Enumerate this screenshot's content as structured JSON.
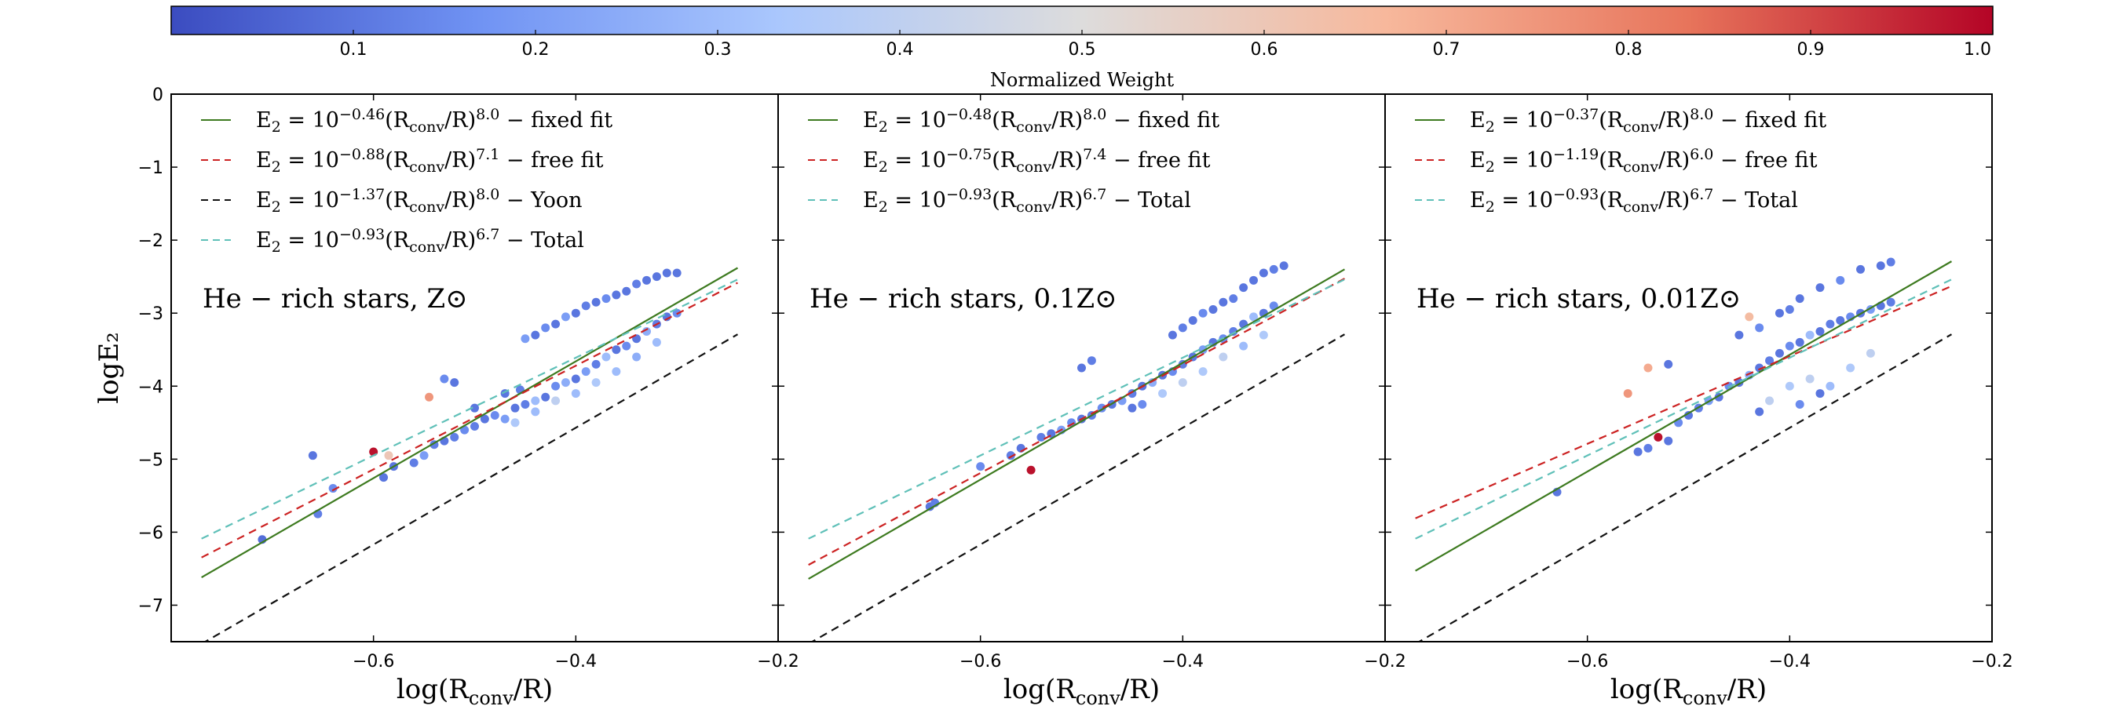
{
  "chart_data": {
    "type": "scatter",
    "colorbar": {
      "label": "Normalized Weight",
      "range": [
        0.0,
        1.0
      ],
      "ticks": [
        "0.1",
        "0.2",
        "0.3",
        "0.4",
        "0.5",
        "0.6",
        "0.7",
        "0.8",
        "0.9",
        "1.0"
      ],
      "colors": [
        "#3b4cc0",
        "#6f92f3",
        "#aac7fd",
        "#dddcdc",
        "#f7b89c",
        "#e7745b",
        "#b40426"
      ]
    },
    "shared_ylabel": "logE₂",
    "shared_ylim": [
      -7.5,
      0
    ],
    "shared_yticks": [
      "0",
      "−1",
      "−2",
      "−3",
      "−4",
      "−5",
      "−6",
      "−7"
    ],
    "panels": [
      {
        "title": "He − rich stars, Z⊙",
        "xlabel": "log(Rconv/R)",
        "xlim": [
          -0.8,
          -0.2
        ],
        "xticks": [
          "−0.6",
          "−0.4",
          "−0.2"
        ],
        "legend": [
          "E₂ = 10^−0.46 (Rconv/R)^8.0 − fixed fit",
          "E₂ = 10^−0.88 (Rconv/R)^7.1 − free fit",
          "E₂ = 10^−1.37 (Rconv/R)^8.0 − Yoon",
          "E₂ = 10^−0.93 (Rconv/R)^6.7 − Total"
        ],
        "lines": [
          {
            "name": "fixed fit",
            "color": "#3d7a1f",
            "dash": "none",
            "a": -0.46,
            "b": 8.0
          },
          {
            "name": "free fit",
            "color": "#cc2222",
            "dash": "10,7",
            "a": -0.88,
            "b": 7.1
          },
          {
            "name": "Yoon",
            "color": "#111111",
            "dash": "10,7",
            "a": -1.37,
            "b": 8.0
          },
          {
            "name": "Total",
            "color": "#5fc0b8",
            "dash": "10,7",
            "a": -0.93,
            "b": 6.7
          }
        ],
        "scatter": [
          {
            "x": -0.71,
            "y": -6.1,
            "w": 0.08
          },
          {
            "x": -0.66,
            "y": -4.95,
            "w": 0.1
          },
          {
            "x": -0.655,
            "y": -5.75,
            "w": 0.12
          },
          {
            "x": -0.64,
            "y": -5.4,
            "w": 0.15
          },
          {
            "x": -0.6,
            "y": -4.9,
            "w": 0.98
          },
          {
            "x": -0.585,
            "y": -4.95,
            "w": 0.6
          },
          {
            "x": -0.59,
            "y": -5.25,
            "w": 0.1
          },
          {
            "x": -0.58,
            "y": -5.1,
            "w": 0.1
          },
          {
            "x": -0.56,
            "y": -5.05,
            "w": 0.12
          },
          {
            "x": -0.545,
            "y": -4.15,
            "w": 0.75
          },
          {
            "x": -0.53,
            "y": -3.9,
            "w": 0.15
          },
          {
            "x": -0.52,
            "y": -3.95,
            "w": 0.1
          },
          {
            "x": -0.55,
            "y": -4.95,
            "w": 0.2
          },
          {
            "x": -0.54,
            "y": -4.8,
            "w": 0.12
          },
          {
            "x": -0.53,
            "y": -4.75,
            "w": 0.1
          },
          {
            "x": -0.52,
            "y": -4.7,
            "w": 0.12
          },
          {
            "x": -0.51,
            "y": -4.6,
            "w": 0.15
          },
          {
            "x": -0.5,
            "y": -4.55,
            "w": 0.12
          },
          {
            "x": -0.49,
            "y": -4.45,
            "w": 0.1
          },
          {
            "x": -0.48,
            "y": -4.4,
            "w": 0.15
          },
          {
            "x": -0.47,
            "y": -4.45,
            "w": 0.2
          },
          {
            "x": -0.46,
            "y": -4.3,
            "w": 0.1
          },
          {
            "x": -0.45,
            "y": -4.25,
            "w": 0.12
          },
          {
            "x": -0.44,
            "y": -4.2,
            "w": 0.3
          },
          {
            "x": -0.43,
            "y": -4.15,
            "w": 0.1
          },
          {
            "x": -0.42,
            "y": -4.0,
            "w": 0.15
          },
          {
            "x": -0.41,
            "y": -3.95,
            "w": 0.25
          },
          {
            "x": -0.4,
            "y": -3.9,
            "w": 0.1
          },
          {
            "x": -0.39,
            "y": -3.8,
            "w": 0.2
          },
          {
            "x": -0.38,
            "y": -3.7,
            "w": 0.12
          },
          {
            "x": -0.37,
            "y": -3.6,
            "w": 0.3
          },
          {
            "x": -0.36,
            "y": -3.5,
            "w": 0.1
          },
          {
            "x": -0.35,
            "y": -3.45,
            "w": 0.15
          },
          {
            "x": -0.34,
            "y": -3.35,
            "w": 0.1
          },
          {
            "x": -0.33,
            "y": -3.25,
            "w": 0.25
          },
          {
            "x": -0.32,
            "y": -3.15,
            "w": 0.12
          },
          {
            "x": -0.31,
            "y": -3.05,
            "w": 0.1
          },
          {
            "x": -0.3,
            "y": -3.0,
            "w": 0.15
          },
          {
            "x": -0.46,
            "y": -4.5,
            "w": 0.35
          },
          {
            "x": -0.44,
            "y": -4.35,
            "w": 0.3
          },
          {
            "x": -0.42,
            "y": -4.2,
            "w": 0.4
          },
          {
            "x": -0.4,
            "y": -4.1,
            "w": 0.3
          },
          {
            "x": -0.38,
            "y": -3.95,
            "w": 0.35
          },
          {
            "x": -0.36,
            "y": -3.8,
            "w": 0.3
          },
          {
            "x": -0.34,
            "y": -3.6,
            "w": 0.25
          },
          {
            "x": -0.32,
            "y": -3.4,
            "w": 0.3
          },
          {
            "x": -0.45,
            "y": -3.35,
            "w": 0.2
          },
          {
            "x": -0.44,
            "y": -3.3,
            "w": 0.1
          },
          {
            "x": -0.43,
            "y": -3.2,
            "w": 0.15
          },
          {
            "x": -0.42,
            "y": -3.15,
            "w": 0.1
          },
          {
            "x": -0.41,
            "y": -3.05,
            "w": 0.2
          },
          {
            "x": -0.4,
            "y": -3.0,
            "w": 0.1
          },
          {
            "x": -0.39,
            "y": -2.9,
            "w": 0.12
          },
          {
            "x": -0.38,
            "y": -2.85,
            "w": 0.1
          },
          {
            "x": -0.37,
            "y": -2.8,
            "w": 0.15
          },
          {
            "x": -0.36,
            "y": -2.75,
            "w": 0.1
          },
          {
            "x": -0.35,
            "y": -2.7,
            "w": 0.1
          },
          {
            "x": -0.34,
            "y": -2.6,
            "w": 0.12
          },
          {
            "x": -0.33,
            "y": -2.55,
            "w": 0.1
          },
          {
            "x": -0.32,
            "y": -2.5,
            "w": 0.1
          },
          {
            "x": -0.31,
            "y": -2.45,
            "w": 0.1
          },
          {
            "x": -0.3,
            "y": -2.45,
            "w": 0.1
          },
          {
            "x": -0.47,
            "y": -4.1,
            "w": 0.1
          },
          {
            "x": -0.455,
            "y": -4.05,
            "w": 0.12
          },
          {
            "x": -0.5,
            "y": -4.3,
            "w": 0.1
          }
        ]
      },
      {
        "title": "He − rich stars, 0.1Z⊙",
        "xlabel": "log(Rconv/R)",
        "xlim": [
          -0.8,
          -0.2
        ],
        "xticks": [
          "−0.6",
          "−0.4",
          "−0.2"
        ],
        "legend": [
          "E₂ = 10^−0.48 (Rconv/R)^8.0 − fixed fit",
          "E₂ = 10^−0.75 (Rconv/R)^7.4 − free fit",
          "E₂ = 10^−0.93 (Rconv/R)^6.7 − Total"
        ],
        "lines": [
          {
            "name": "fixed fit",
            "color": "#3d7a1f",
            "dash": "none",
            "a": -0.48,
            "b": 8.0
          },
          {
            "name": "free fit",
            "color": "#cc2222",
            "dash": "10,7",
            "a": -0.75,
            "b": 7.4
          },
          {
            "name": "Total",
            "color": "#5fc0b8",
            "dash": "10,7",
            "a": -0.93,
            "b": 6.7
          },
          {
            "name": "Yoon",
            "color": "#111111",
            "dash": "10,7",
            "a": -1.37,
            "b": 8.0
          }
        ],
        "scatter": [
          {
            "x": -0.65,
            "y": -5.65,
            "w": 0.1
          },
          {
            "x": -0.645,
            "y": -5.6,
            "w": 0.12
          },
          {
            "x": -0.6,
            "y": -5.1,
            "w": 0.15
          },
          {
            "x": -0.57,
            "y": -4.95,
            "w": 0.12
          },
          {
            "x": -0.55,
            "y": -5.15,
            "w": 0.98
          },
          {
            "x": -0.56,
            "y": -4.85,
            "w": 0.1
          },
          {
            "x": -0.54,
            "y": -4.7,
            "w": 0.12
          },
          {
            "x": -0.53,
            "y": -4.65,
            "w": 0.1
          },
          {
            "x": -0.52,
            "y": -4.6,
            "w": 0.2
          },
          {
            "x": -0.51,
            "y": -4.5,
            "w": 0.15
          },
          {
            "x": -0.5,
            "y": -4.45,
            "w": 0.1
          },
          {
            "x": -0.49,
            "y": -4.4,
            "w": 0.12
          },
          {
            "x": -0.48,
            "y": -4.3,
            "w": 0.15
          },
          {
            "x": -0.47,
            "y": -4.25,
            "w": 0.1
          },
          {
            "x": -0.46,
            "y": -4.2,
            "w": 0.2
          },
          {
            "x": -0.45,
            "y": -4.1,
            "w": 0.12
          },
          {
            "x": -0.44,
            "y": -4.0,
            "w": 0.1
          },
          {
            "x": -0.43,
            "y": -3.95,
            "w": 0.25
          },
          {
            "x": -0.42,
            "y": -3.85,
            "w": 0.1
          },
          {
            "x": -0.41,
            "y": -3.8,
            "w": 0.15
          },
          {
            "x": -0.4,
            "y": -3.7,
            "w": 0.12
          },
          {
            "x": -0.39,
            "y": -3.6,
            "w": 0.1
          },
          {
            "x": -0.38,
            "y": -3.5,
            "w": 0.2
          },
          {
            "x": -0.37,
            "y": -3.4,
            "w": 0.1
          },
          {
            "x": -0.36,
            "y": -3.35,
            "w": 0.15
          },
          {
            "x": -0.35,
            "y": -3.25,
            "w": 0.12
          },
          {
            "x": -0.34,
            "y": -3.15,
            "w": 0.1
          },
          {
            "x": -0.33,
            "y": -3.05,
            "w": 0.3
          },
          {
            "x": -0.32,
            "y": -3.0,
            "w": 0.1
          },
          {
            "x": -0.31,
            "y": -2.9,
            "w": 0.15
          },
          {
            "x": -0.42,
            "y": -4.1,
            "w": 0.35
          },
          {
            "x": -0.4,
            "y": -3.95,
            "w": 0.4
          },
          {
            "x": -0.38,
            "y": -3.8,
            "w": 0.35
          },
          {
            "x": -0.36,
            "y": -3.6,
            "w": 0.4
          },
          {
            "x": -0.34,
            "y": -3.45,
            "w": 0.3
          },
          {
            "x": -0.32,
            "y": -3.3,
            "w": 0.35
          },
          {
            "x": -0.45,
            "y": -4.3,
            "w": 0.1
          },
          {
            "x": -0.44,
            "y": -4.25,
            "w": 0.15
          },
          {
            "x": -0.5,
            "y": -3.75,
            "w": 0.1
          },
          {
            "x": -0.49,
            "y": -3.65,
            "w": 0.12
          },
          {
            "x": -0.41,
            "y": -3.3,
            "w": 0.1
          },
          {
            "x": -0.4,
            "y": -3.2,
            "w": 0.12
          },
          {
            "x": -0.39,
            "y": -3.1,
            "w": 0.1
          },
          {
            "x": -0.38,
            "y": -3.0,
            "w": 0.15
          },
          {
            "x": -0.37,
            "y": -2.95,
            "w": 0.1
          },
          {
            "x": -0.36,
            "y": -2.85,
            "w": 0.1
          },
          {
            "x": -0.35,
            "y": -2.8,
            "w": 0.12
          },
          {
            "x": -0.34,
            "y": -2.65,
            "w": 0.1
          },
          {
            "x": -0.33,
            "y": -2.55,
            "w": 0.1
          },
          {
            "x": -0.32,
            "y": -2.45,
            "w": 0.1
          },
          {
            "x": -0.31,
            "y": -2.4,
            "w": 0.12
          },
          {
            "x": -0.3,
            "y": -2.35,
            "w": 0.1
          }
        ]
      },
      {
        "title": "He − rich stars, 0.01Z⊙",
        "xlabel": "log(Rconv/R)",
        "xlim": [
          -0.8,
          -0.2
        ],
        "xticks": [
          "−0.6",
          "−0.4",
          "−0.2"
        ],
        "legend": [
          "E₂ = 10^−0.37 (Rconv/R)^8.0 − fixed fit",
          "E₂ = 10^−1.19 (Rconv/R)^6.0 − free fit",
          "E₂ = 10^−0.93 (Rconv/R)^6.7 − Total"
        ],
        "lines": [
          {
            "name": "fixed fit",
            "color": "#3d7a1f",
            "dash": "none",
            "a": -0.37,
            "b": 8.0
          },
          {
            "name": "free fit",
            "color": "#cc2222",
            "dash": "10,7",
            "a": -1.19,
            "b": 6.0
          },
          {
            "name": "Total",
            "color": "#5fc0b8",
            "dash": "10,7",
            "a": -0.93,
            "b": 6.7
          },
          {
            "name": "Yoon",
            "color": "#111111",
            "dash": "10,7",
            "a": -1.37,
            "b": 8.0
          }
        ],
        "scatter": [
          {
            "x": -0.63,
            "y": -5.45,
            "w": 0.1
          },
          {
            "x": -0.56,
            "y": -4.1,
            "w": 0.75
          },
          {
            "x": -0.54,
            "y": -3.75,
            "w": 0.7
          },
          {
            "x": -0.52,
            "y": -3.7,
            "w": 0.1
          },
          {
            "x": -0.53,
            "y": -4.7,
            "w": 0.98
          },
          {
            "x": -0.55,
            "y": -4.9,
            "w": 0.1
          },
          {
            "x": -0.54,
            "y": -4.85,
            "w": 0.12
          },
          {
            "x": -0.52,
            "y": -4.75,
            "w": 0.1
          },
          {
            "x": -0.51,
            "y": -4.5,
            "w": 0.15
          },
          {
            "x": -0.5,
            "y": -4.4,
            "w": 0.1
          },
          {
            "x": -0.49,
            "y": -4.3,
            "w": 0.12
          },
          {
            "x": -0.48,
            "y": -4.2,
            "w": 0.2
          },
          {
            "x": -0.47,
            "y": -4.15,
            "w": 0.1
          },
          {
            "x": -0.46,
            "y": -4.0,
            "w": 0.15
          },
          {
            "x": -0.45,
            "y": -3.95,
            "w": 0.1
          },
          {
            "x": -0.44,
            "y": -3.85,
            "w": 0.25
          },
          {
            "x": -0.43,
            "y": -3.75,
            "w": 0.1
          },
          {
            "x": -0.42,
            "y": -3.65,
            "w": 0.12
          },
          {
            "x": -0.41,
            "y": -3.55,
            "w": 0.1
          },
          {
            "x": -0.4,
            "y": -3.45,
            "w": 0.15
          },
          {
            "x": -0.39,
            "y": -3.4,
            "w": 0.1
          },
          {
            "x": -0.38,
            "y": -3.3,
            "w": 0.3
          },
          {
            "x": -0.37,
            "y": -3.25,
            "w": 0.1
          },
          {
            "x": -0.36,
            "y": -3.15,
            "w": 0.12
          },
          {
            "x": -0.35,
            "y": -3.1,
            "w": 0.1
          },
          {
            "x": -0.34,
            "y": -3.05,
            "w": 0.15
          },
          {
            "x": -0.33,
            "y": -3.0,
            "w": 0.1
          },
          {
            "x": -0.32,
            "y": -2.95,
            "w": 0.2
          },
          {
            "x": -0.31,
            "y": -2.9,
            "w": 0.1
          },
          {
            "x": -0.3,
            "y": -2.85,
            "w": 0.12
          },
          {
            "x": -0.44,
            "y": -3.05,
            "w": 0.65
          },
          {
            "x": -0.45,
            "y": -3.3,
            "w": 0.1
          },
          {
            "x": -0.43,
            "y": -3.2,
            "w": 0.15
          },
          {
            "x": -0.41,
            "y": -3.0,
            "w": 0.1
          },
          {
            "x": -0.4,
            "y": -2.95,
            "w": 0.12
          },
          {
            "x": -0.39,
            "y": -2.8,
            "w": 0.1
          },
          {
            "x": -0.37,
            "y": -2.65,
            "w": 0.1
          },
          {
            "x": -0.35,
            "y": -2.55,
            "w": 0.15
          },
          {
            "x": -0.33,
            "y": -2.4,
            "w": 0.1
          },
          {
            "x": -0.31,
            "y": -2.35,
            "w": 0.1
          },
          {
            "x": -0.3,
            "y": -2.3,
            "w": 0.12
          },
          {
            "x": -0.42,
            "y": -4.2,
            "w": 0.4
          },
          {
            "x": -0.4,
            "y": -4.0,
            "w": 0.35
          },
          {
            "x": -0.38,
            "y": -3.9,
            "w": 0.4
          },
          {
            "x": -0.36,
            "y": -4.0,
            "w": 0.3
          },
          {
            "x": -0.34,
            "y": -3.75,
            "w": 0.35
          },
          {
            "x": -0.32,
            "y": -3.55,
            "w": 0.4
          },
          {
            "x": -0.43,
            "y": -4.35,
            "w": 0.1
          },
          {
            "x": -0.39,
            "y": -4.25,
            "w": 0.15
          },
          {
            "x": -0.37,
            "y": -4.1,
            "w": 0.1
          }
        ]
      }
    ]
  }
}
